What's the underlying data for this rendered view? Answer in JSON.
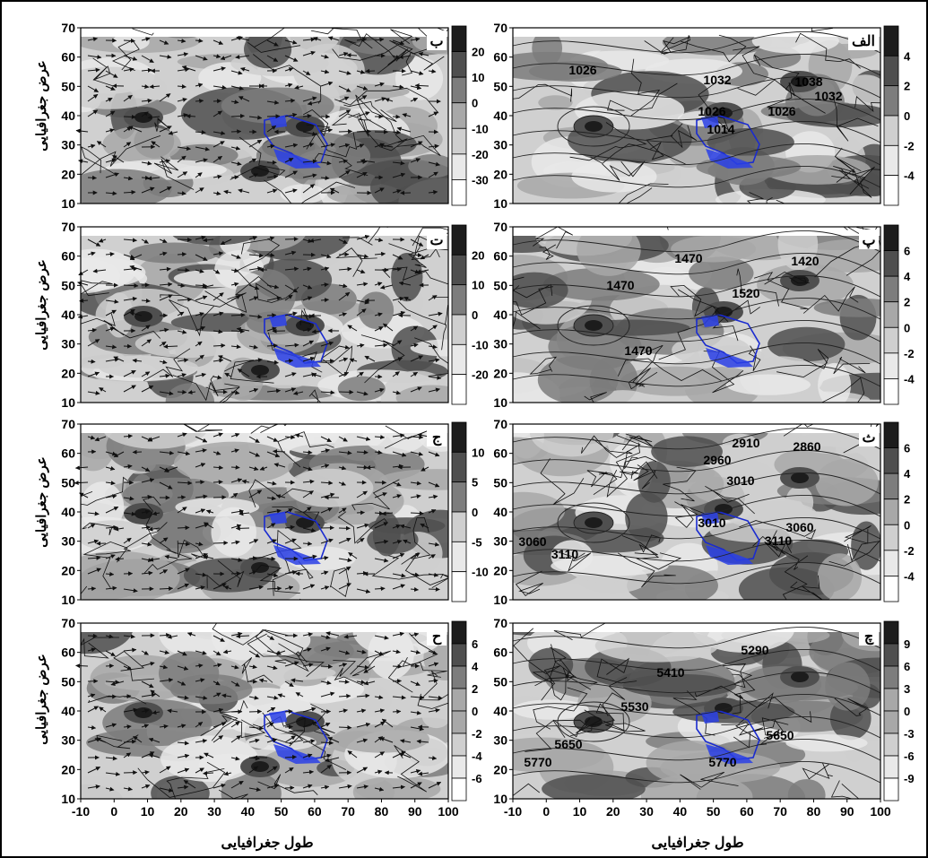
{
  "figure": {
    "ylabel": "عرض جغرافیایی",
    "xlabel": "طول جغرافیایی",
    "x_ticks": [
      "-10",
      "0",
      "10",
      "20",
      "30",
      "40",
      "50",
      "60",
      "70",
      "80",
      "90",
      "100"
    ],
    "y_ticks": [
      "70",
      "60",
      "50",
      "40",
      "30",
      "20",
      "10"
    ],
    "colors": {
      "region_fill": "#2a3fe6",
      "region_outline": "#1a2bd0",
      "scale": [
        "#ffffff",
        "#e9e9e9",
        "#cfcfcf",
        "#a8a8a8",
        "#7d7d7d",
        "#4f4f4f",
        "#1c1c1c"
      ]
    }
  },
  "panels": [
    {
      "id": "left-1",
      "letter": "ب",
      "kind": "wind",
      "cbar": [
        "20",
        "10",
        "0",
        "-10",
        "-20",
        "-30"
      ]
    },
    {
      "id": "right-1",
      "letter": "الف",
      "kind": "contour",
      "cbar": [
        "4",
        "2",
        "0",
        "-2",
        "-4"
      ],
      "contours": [
        "1026",
        "1032",
        "1038",
        "1032",
        "1026",
        "1026",
        "1014"
      ]
    },
    {
      "id": "left-2",
      "letter": "ت",
      "kind": "wind",
      "cbar": [
        "20",
        "10",
        "0",
        "-10",
        "-20"
      ]
    },
    {
      "id": "right-2",
      "letter": "پ",
      "kind": "contour",
      "cbar": [
        "6",
        "4",
        "2",
        "0",
        "-2",
        "-4"
      ],
      "contours": [
        "1470",
        "1420",
        "1470",
        "1520",
        "1470"
      ]
    },
    {
      "id": "left-3",
      "letter": "ج",
      "kind": "wind",
      "cbar": [
        "10",
        "5",
        "0",
        "-5",
        "-10"
      ]
    },
    {
      "id": "right-3",
      "letter": "ث",
      "kind": "contour",
      "cbar": [
        "6",
        "4",
        "2",
        "0",
        "-2",
        "-4"
      ],
      "contours": [
        "2910",
        "2860",
        "2960",
        "3010",
        "3010",
        "3060",
        "3060",
        "3110",
        "3110"
      ]
    },
    {
      "id": "left-4",
      "letter": "ح",
      "kind": "wind",
      "cbar": [
        "6",
        "4",
        "2",
        "0",
        "-2",
        "-4",
        "-6"
      ]
    },
    {
      "id": "right-4",
      "letter": "چ",
      "kind": "contour",
      "cbar": [
        "9",
        "6",
        "3",
        "0",
        "-3",
        "-6",
        "-9"
      ],
      "contours": [
        "5290",
        "5410",
        "5530",
        "5650",
        "5650",
        "5770",
        "5770"
      ]
    }
  ]
}
